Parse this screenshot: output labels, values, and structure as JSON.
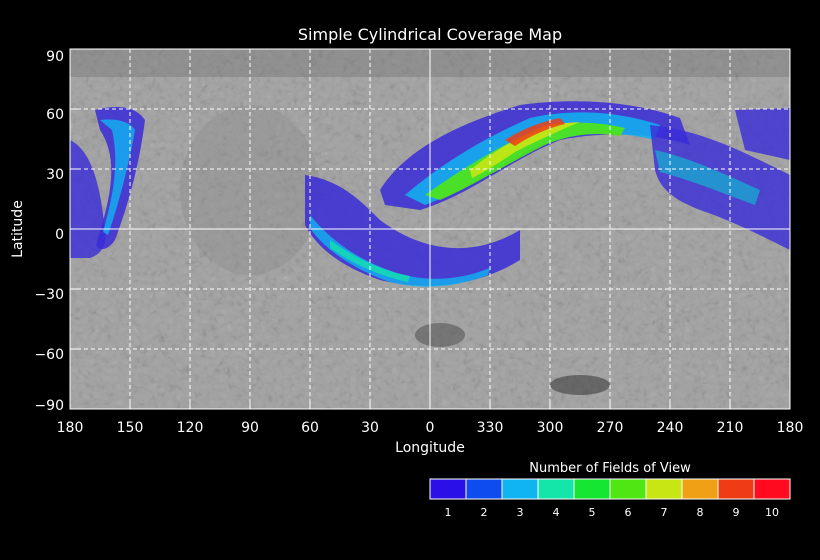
{
  "title": "Simple Cylindrical Coverage Map",
  "x_axis": {
    "label": "Longitude",
    "ticks": [
      "180",
      "150",
      "120",
      "90",
      "60",
      "30",
      "0",
      "330",
      "300",
      "270",
      "240",
      "210",
      "180"
    ]
  },
  "y_axis": {
    "label": "Latitude",
    "ticks": [
      "90",
      "60",
      "30",
      "0",
      "−30",
      "−60",
      "−90"
    ]
  },
  "legend": {
    "title": "Number of Fields of View",
    "labels": [
      "1",
      "2",
      "3",
      "4",
      "5",
      "6",
      "7",
      "8",
      "9",
      "10"
    ],
    "colors": [
      "#2a10e6",
      "#0f4cf0",
      "#10b4f0",
      "#14e6aa",
      "#14e632",
      "#50e614",
      "#c8e614",
      "#f0a014",
      "#f03c14",
      "#ff0a1e"
    ]
  },
  "coverage_regions": [
    {
      "name": "northern-arc",
      "level": 5
    },
    {
      "name": "southern-arc",
      "level": 3
    },
    {
      "name": "west-edge-band",
      "level": 2
    },
    {
      "name": "east-edge-band",
      "level": 2
    }
  ]
}
